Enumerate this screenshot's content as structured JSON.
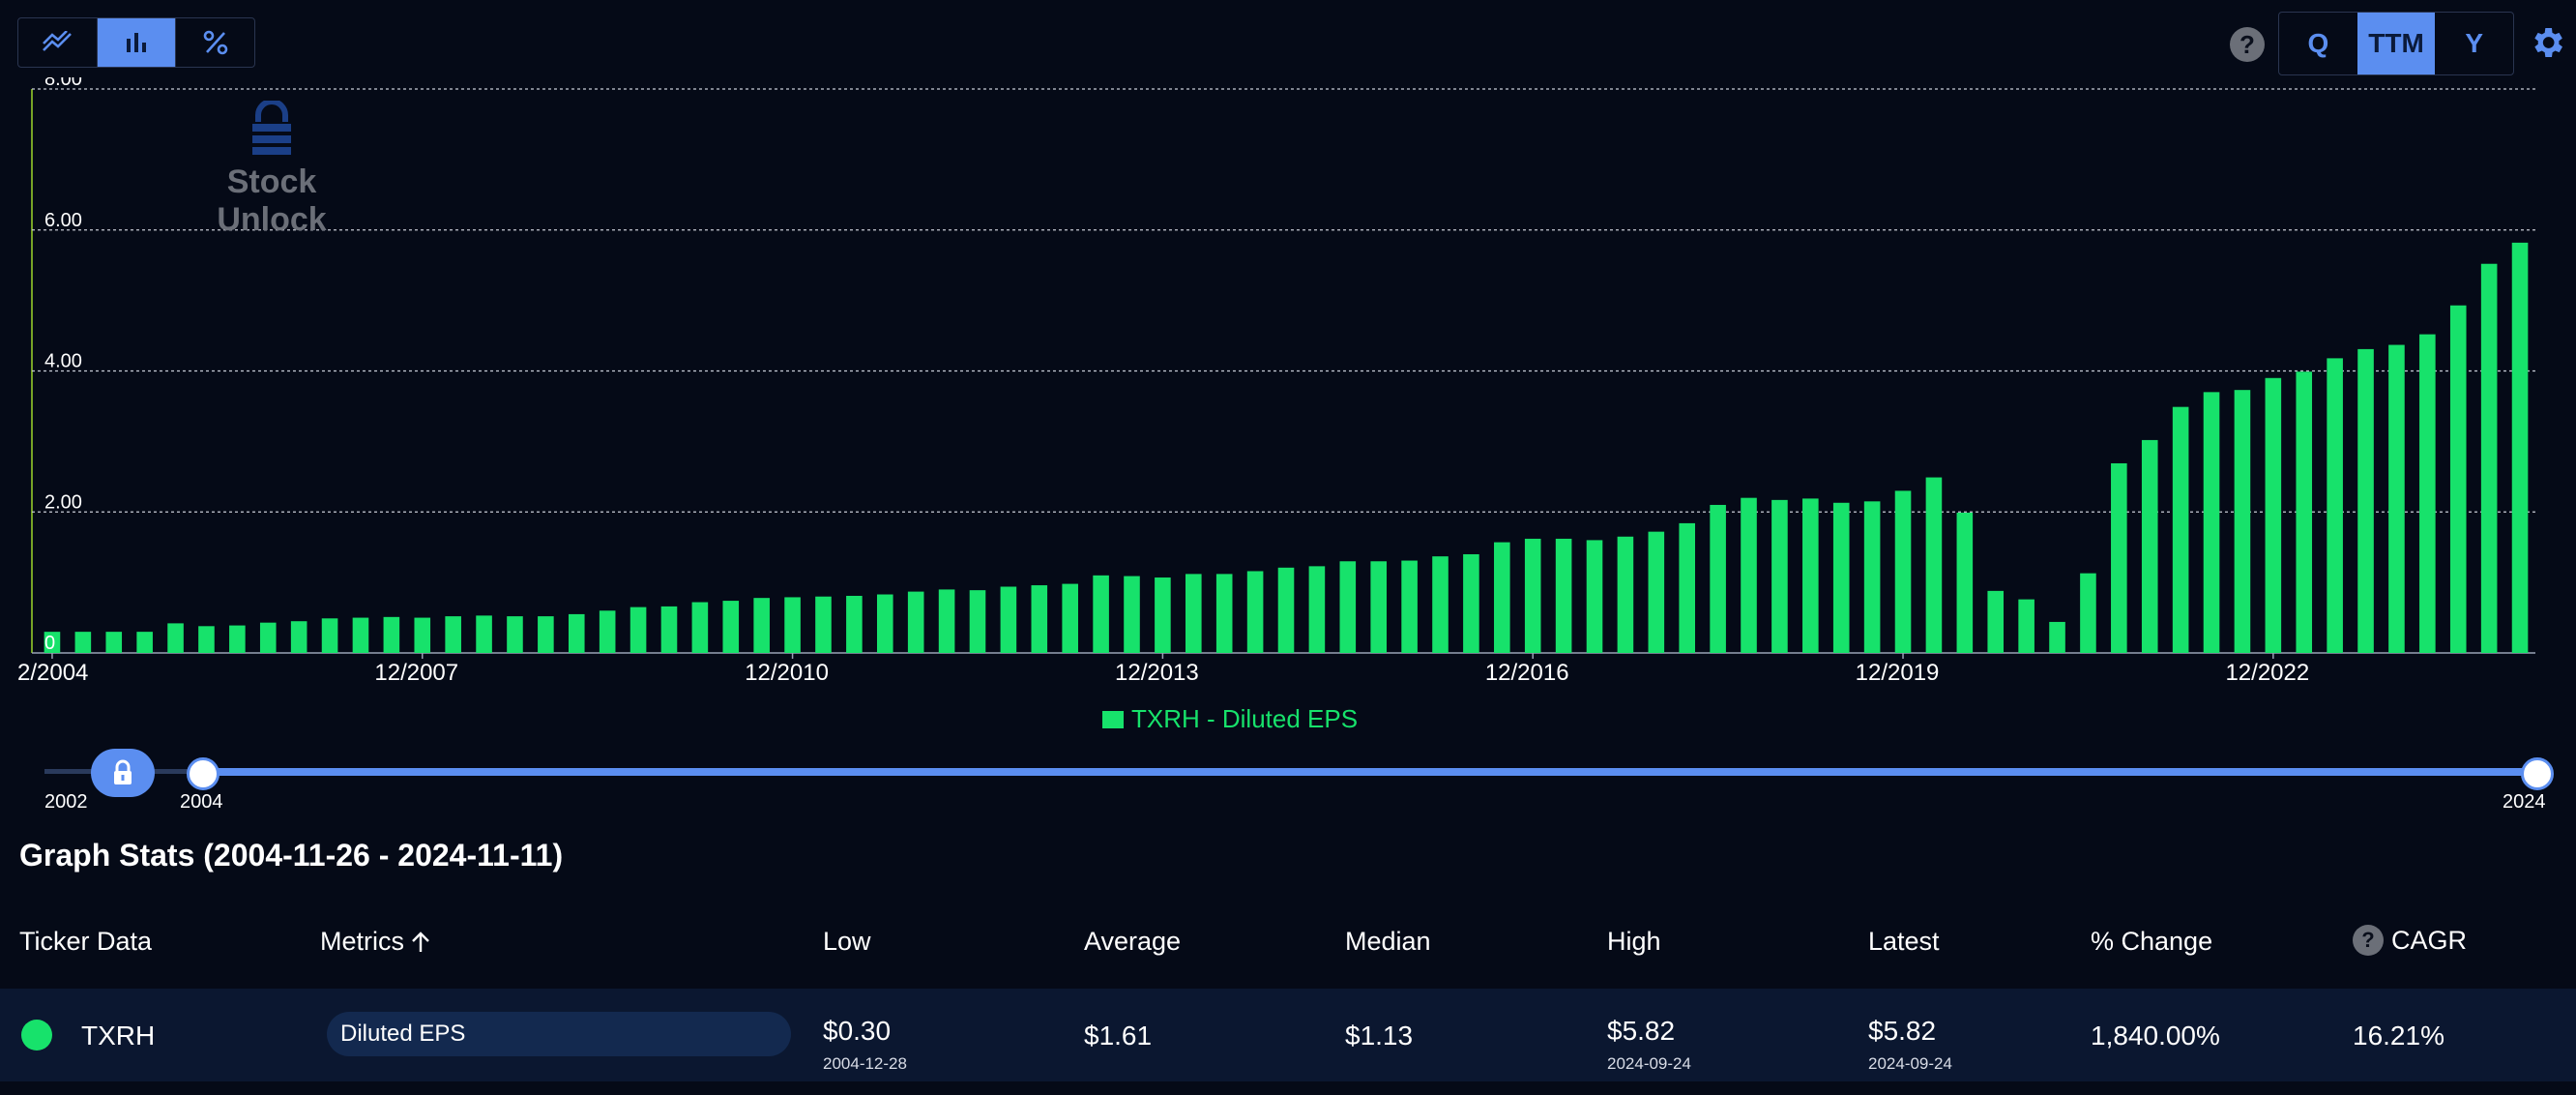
{
  "toolbar": {
    "chart_types": [
      {
        "icon": "line-chart-icon",
        "active": false
      },
      {
        "icon": "bar-chart-icon",
        "active": true
      },
      {
        "icon": "percent-icon",
        "active": false
      }
    ],
    "periods": [
      "Q",
      "TTM",
      "Y"
    ],
    "active_period": "TTM",
    "help_symbol": "?",
    "settings_icon": "gear-icon"
  },
  "watermark": {
    "text": "Stock Unlock",
    "icon": "lock-logo-icon"
  },
  "colors": {
    "bar": "#17e26b",
    "accent": "#5b8ef0",
    "background": "#050a17"
  },
  "chart_data": {
    "type": "bar",
    "title": "",
    "xlabel": "",
    "ylabel": "",
    "ylim": [
      0,
      8
    ],
    "y_ticks": [
      "0",
      "2.00",
      "4.00",
      "6.00",
      "8.00"
    ],
    "x_ticks": [
      "2/2004",
      "12/2007",
      "12/2010",
      "12/2013",
      "12/2016",
      "12/2019",
      "12/2022"
    ],
    "grid": true,
    "legend_placement": "bottom-center",
    "series": [
      {
        "name": "TXRH - Diluted EPS",
        "values": [
          0.3,
          0.3,
          0.3,
          0.3,
          0.42,
          0.38,
          0.39,
          0.43,
          0.45,
          0.49,
          0.5,
          0.51,
          0.5,
          0.52,
          0.53,
          0.52,
          0.52,
          0.55,
          0.6,
          0.65,
          0.66,
          0.72,
          0.74,
          0.78,
          0.79,
          0.8,
          0.81,
          0.83,
          0.87,
          0.9,
          0.89,
          0.94,
          0.96,
          0.98,
          1.1,
          1.09,
          1.07,
          1.12,
          1.12,
          1.16,
          1.21,
          1.23,
          1.3,
          1.3,
          1.31,
          1.37,
          1.4,
          1.57,
          1.62,
          1.62,
          1.6,
          1.65,
          1.72,
          1.84,
          2.1,
          2.2,
          2.17,
          2.19,
          2.13,
          2.15,
          2.3,
          2.49,
          1.99,
          0.88,
          0.76,
          0.44,
          1.13,
          2.69,
          3.02,
          3.49,
          3.7,
          3.73,
          3.9,
          3.99,
          4.18,
          4.31,
          4.37,
          4.52,
          4.93,
          5.52,
          5.82
        ]
      }
    ]
  },
  "legend": {
    "label": "TXRH - Diluted EPS"
  },
  "slider": {
    "min_label": "2002",
    "start_label": "2004",
    "end_label": "2024"
  },
  "stats": {
    "title": "Graph Stats (2004-11-26 - 2024-11-11)",
    "headers": {
      "ticker": "Ticker Data",
      "metrics": "Metrics",
      "low": "Low",
      "average": "Average",
      "median": "Median",
      "high": "High",
      "latest": "Latest",
      "change": "% Change",
      "cagr": "CAGR"
    },
    "row": {
      "ticker": "TXRH",
      "metric": "Diluted EPS",
      "low": "$0.30",
      "low_date": "2004-12-28",
      "average": "$1.61",
      "median": "$1.13",
      "high": "$5.82",
      "high_date": "2024-09-24",
      "latest": "$5.82",
      "latest_date": "2024-09-24",
      "change": "1,840.00%",
      "cagr": "16.21%"
    }
  }
}
